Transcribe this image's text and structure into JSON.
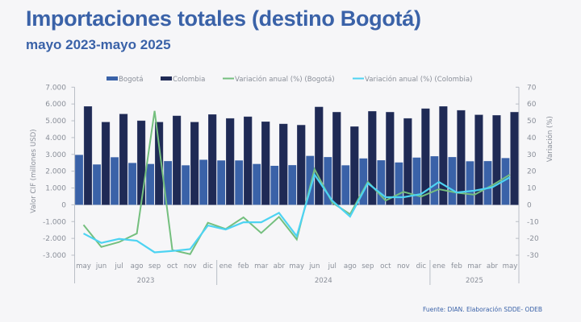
{
  "header": {
    "title": "Importaciones totales (destino Bogotá)",
    "subtitle": "mayo 2023-mayo 2025"
  },
  "footer": {
    "source": "Fuente: DIAN. Elaboración SDDE- ODEB"
  },
  "colors": {
    "bogota_bar": "#3a62a8",
    "colombia_bar": "#1f2a55",
    "var_bogota_line": "#74bf7e",
    "var_colombia_line": "#4dd3f2",
    "axis": "#b9bec6",
    "text": "#8a8f99"
  },
  "chart_data": {
    "type": "bar",
    "title": "Importaciones totales (destino Bogotá)",
    "subtitle": "mayo 2023-mayo 2025",
    "categories": [
      "may",
      "jun",
      "jul",
      "ago",
      "sep",
      "oct",
      "nov",
      "dic",
      "ene",
      "feb",
      "mar",
      "abr",
      "may",
      "jun",
      "jul",
      "ago",
      "sep",
      "oct",
      "nov",
      "dic",
      "ene",
      "feb",
      "mar",
      "abr",
      "may"
    ],
    "year_groups": [
      {
        "label": "2023",
        "count": 8
      },
      {
        "label": "2024",
        "count": 12
      },
      {
        "label": "2025",
        "count": 5
      }
    ],
    "ylabel": "Valor CIF (millones USD)",
    "ylim": [
      -3000,
      7000
    ],
    "yticks": [
      7000,
      6000,
      5000,
      4000,
      3000,
      2000,
      1000,
      0,
      -1000,
      -2000,
      -3000
    ],
    "ytick_labels": [
      "7.000",
      "6.000",
      "5.000",
      "4.000",
      "3.000",
      "2.000",
      "1.000",
      "0",
      "-1.000",
      "-2.000",
      "-3.000"
    ],
    "y2label": "Variación (%)",
    "y2lim": [
      -30,
      70
    ],
    "y2ticks": [
      70,
      60,
      50,
      40,
      30,
      20,
      10,
      0,
      -10,
      -20,
      -30
    ],
    "y2tick_labels": [
      "70",
      "60",
      "50",
      "40",
      "30",
      "20",
      "10",
      "0",
      "-10",
      "-20",
      "-30"
    ],
    "legend_position": "top",
    "grid": false,
    "series": [
      {
        "name": "Bogotá",
        "type": "bar",
        "axis": "left",
        "values": [
          2970,
          2400,
          2830,
          2490,
          2430,
          2600,
          2350,
          2680,
          2640,
          2640,
          2430,
          2320,
          2360,
          2910,
          2840,
          2350,
          2760,
          2650,
          2520,
          2810,
          2890,
          2840,
          2590,
          2600,
          2780
        ]
      },
      {
        "name": "Colombia",
        "type": "bar",
        "axis": "left",
        "values": [
          5850,
          4920,
          5400,
          5000,
          4920,
          5290,
          4920,
          5370,
          5140,
          5240,
          4940,
          4810,
          4740,
          5820,
          5510,
          4650,
          5560,
          5510,
          5140,
          5720,
          5850,
          5620,
          5350,
          5320,
          5510
        ]
      },
      {
        "name": "Variación anual (%) (Bogotá)",
        "type": "line",
        "axis": "right",
        "values": [
          -12.0,
          -25.1,
          -22.2,
          -17.1,
          55.9,
          -27.0,
          -29.4,
          -10.7,
          -14.4,
          -7.5,
          -16.8,
          -7.2,
          -20.6,
          21.2,
          1.3,
          -5.6,
          13.7,
          2.5,
          7.7,
          4.9,
          9.3,
          7.2,
          6.0,
          11.6,
          18.0
        ]
      },
      {
        "name": "Variación anual (%) (Colombia)",
        "type": "line",
        "axis": "right",
        "values": [
          -17.1,
          -22.7,
          -20.3,
          -21.4,
          -28.3,
          -27.5,
          -26.4,
          -12.3,
          -14.7,
          -10.4,
          -10.4,
          -4.8,
          -18.7,
          18.0,
          2.4,
          -7.0,
          12.8,
          4.5,
          4.5,
          6.4,
          13.6,
          7.3,
          8.4,
          10.4,
          16.4
        ]
      }
    ]
  }
}
